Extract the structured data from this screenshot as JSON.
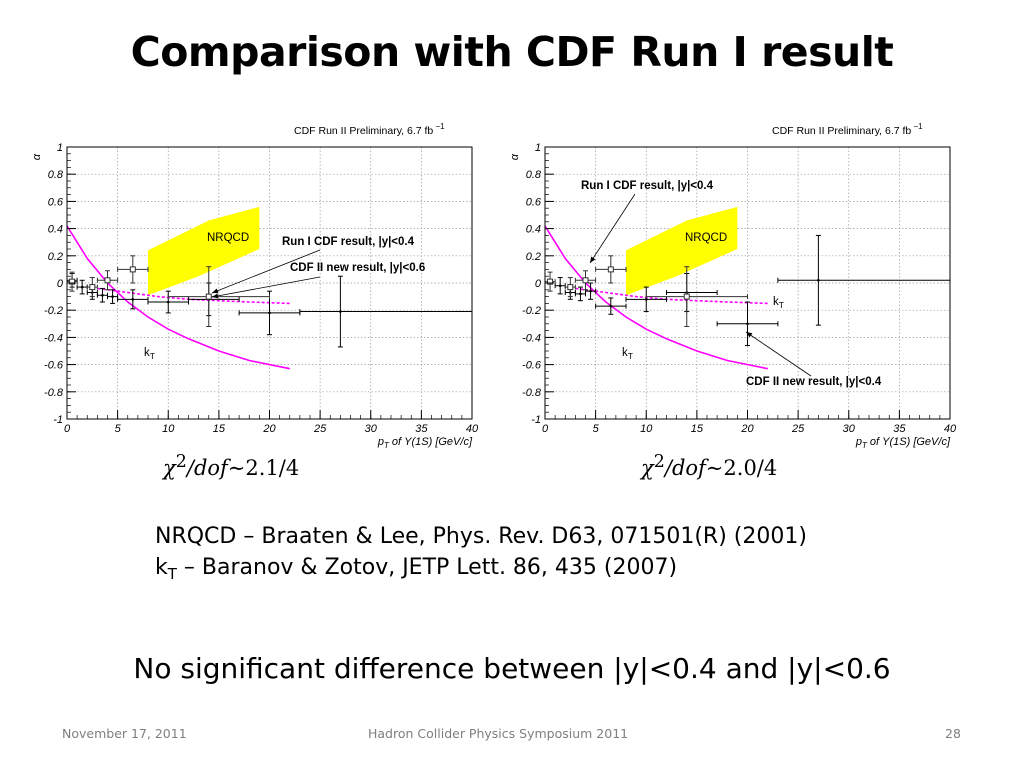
{
  "slide": {
    "title": "Comparison with CDF Run I result",
    "references": {
      "nrqcd": "NRQCD – Braaten & Lee, Phys. Rev. D63, 071501(R) (2001)",
      "kt_prefix": "k",
      "kt_sub": "T",
      "kt_rest": " – Baranov & Zotov, JETP Lett. 86, 435 (2007)"
    },
    "conclusion": "No significant difference between |y|<0.4 and |y|<0.6",
    "footer": {
      "date": "November 17, 2011",
      "event": "Hadron Collider Physics Symposium  2011",
      "page": "28"
    }
  },
  "chart_data": [
    {
      "type": "scatter",
      "header": "CDF Run II Preliminary,  6.7 fb",
      "header_sup": "−1",
      "ylabel": "α",
      "xlabel": "p",
      "xlabel_sub": "T",
      "xlabel_rest": " of Υ(1S) [GeV/c]",
      "xlim": [
        0,
        40
      ],
      "ylim": [
        -1,
        1
      ],
      "xticks": [
        0,
        5,
        10,
        15,
        20,
        25,
        30,
        35,
        40
      ],
      "yticks": [
        -1,
        -0.8,
        -0.6,
        -0.4,
        -0.2,
        0,
        0.2,
        0.4,
        0.6,
        0.8,
        1
      ],
      "grid": true,
      "chi2_text": "χ²/dof∼2.1/4",
      "chi2_prefix": "χ",
      "chi2_sup": "2",
      "chi2_mid": "/dof∼",
      "chi2_num": "2.1/4",
      "series": [
        {
          "name": "CDF II new result, |y|<0.6",
          "marker": "filled-point",
          "points": [
            {
              "x": 0.5,
              "xlo": 0,
              "xhi": 1,
              "y": 0.02,
              "yerr": 0.05
            },
            {
              "x": 1.5,
              "xlo": 1,
              "xhi": 2,
              "y": -0.03,
              "yerr": 0.05
            },
            {
              "x": 2.5,
              "xlo": 2,
              "xhi": 3,
              "y": -0.07,
              "yerr": 0.05
            },
            {
              "x": 3.5,
              "xlo": 3,
              "xhi": 4,
              "y": -0.09,
              "yerr": 0.05
            },
            {
              "x": 4.5,
              "xlo": 4,
              "xhi": 5,
              "y": -0.1,
              "yerr": 0.05
            },
            {
              "x": 6.5,
              "xlo": 5,
              "xhi": 8,
              "y": -0.12,
              "yerr": 0.07
            },
            {
              "x": 10,
              "xlo": 8,
              "xhi": 12,
              "y": -0.14,
              "yerr": 0.08
            },
            {
              "x": 14,
              "xlo": 12,
              "xhi": 17,
              "y": -0.12,
              "yerr": 0.12
            },
            {
              "x": 20,
              "xlo": 17,
              "xhi": 23,
              "y": -0.22,
              "yerr": 0.16
            },
            {
              "x": 27,
              "xlo": 23,
              "xhi": 40,
              "y": -0.21,
              "yerr": 0.26
            }
          ]
        },
        {
          "name": "Run I CDF result, |y|<0.4",
          "marker": "open-square",
          "points": [
            {
              "x": 0.5,
              "xlo": 0,
              "xhi": 1,
              "y": 0.01,
              "yerr": 0.07
            },
            {
              "x": 2.5,
              "xlo": 2,
              "xhi": 3,
              "y": -0.03,
              "yerr": 0.07
            },
            {
              "x": 4.0,
              "xlo": 3,
              "xhi": 5,
              "y": 0.02,
              "yerr": 0.07
            },
            {
              "x": 6.5,
              "xlo": 5,
              "xhi": 8,
              "y": 0.1,
              "yerr": 0.1
            },
            {
              "x": 14,
              "xlo": 10,
              "xhi": 20,
              "y": -0.1,
              "yerr": 0.22
            }
          ]
        }
      ],
      "bands": [
        {
          "name": "NRQCD",
          "color": "#ffff00",
          "upper": [
            [
              8,
              0.24
            ],
            [
              14,
              0.46
            ],
            [
              19,
              0.56
            ]
          ],
          "lower": [
            [
              8,
              -0.09
            ],
            [
              13,
              0.05
            ],
            [
              19,
              0.25
            ]
          ]
        }
      ],
      "curves": [
        {
          "name": "k",
          "name_sub": "T",
          "color": "#ff00ff",
          "style": "solid",
          "points": [
            [
              0,
              0.42
            ],
            [
              2,
              0.18
            ],
            [
              4,
              0.0
            ],
            [
              6,
              -0.14
            ],
            [
              8,
              -0.25
            ],
            [
              10,
              -0.34
            ],
            [
              12,
              -0.41
            ],
            [
              15,
              -0.5
            ],
            [
              18,
              -0.57
            ],
            [
              22,
              -0.63
            ]
          ]
        },
        {
          "name": "",
          "color": "#ff00ff",
          "style": "dashed",
          "points": [
            [
              3,
              -0.04
            ],
            [
              6,
              -0.07
            ],
            [
              9,
              -0.1
            ],
            [
              12,
              -0.12
            ],
            [
              15,
              -0.13
            ],
            [
              18,
              -0.14
            ],
            [
              22,
              -0.15
            ]
          ]
        }
      ],
      "annotations": {
        "nrqcd": "NRQCD",
        "run1": "Run I CDF result, |y|<0.4",
        "cdf2": "CDF II new result, |y|<0.6",
        "kt": "k",
        "kt_sub": "T"
      }
    },
    {
      "type": "scatter",
      "header": "CDF Run II Preliminary,  6.7 fb",
      "header_sup": "−1",
      "ylabel": "α",
      "xlabel": "p",
      "xlabel_sub": "T",
      "xlabel_rest": " of Υ(1S) [GeV/c]",
      "xlim": [
        0,
        40
      ],
      "ylim": [
        -1,
        1
      ],
      "xticks": [
        0,
        5,
        10,
        15,
        20,
        25,
        30,
        35,
        40
      ],
      "yticks": [
        -1,
        -0.8,
        -0.6,
        -0.4,
        -0.2,
        0,
        0.2,
        0.4,
        0.6,
        0.8,
        1
      ],
      "grid": true,
      "chi2_text": "χ²/dof∼2.0/4",
      "chi2_prefix": "χ",
      "chi2_sup": "2",
      "chi2_mid": "/dof∼",
      "chi2_num": "2.0/4",
      "series": [
        {
          "name": "CDF II new result, |y|<0.4",
          "marker": "filled-point",
          "points": [
            {
              "x": 1.5,
              "xlo": 1,
              "xhi": 2,
              "y": -0.02,
              "yerr": 0.06
            },
            {
              "x": 2.5,
              "xlo": 2,
              "xhi": 3,
              "y": -0.07,
              "yerr": 0.05
            },
            {
              "x": 3.5,
              "xlo": 3,
              "xhi": 4,
              "y": -0.08,
              "yerr": 0.05
            },
            {
              "x": 4.5,
              "xlo": 4,
              "xhi": 5,
              "y": -0.06,
              "yerr": 0.06
            },
            {
              "x": 6.5,
              "xlo": 5,
              "xhi": 8,
              "y": -0.17,
              "yerr": 0.06
            },
            {
              "x": 10,
              "xlo": 8,
              "xhi": 12,
              "y": -0.12,
              "yerr": 0.09
            },
            {
              "x": 14,
              "xlo": 12,
              "xhi": 17,
              "y": -0.07,
              "yerr": 0.14
            },
            {
              "x": 20,
              "xlo": 17,
              "xhi": 23,
              "y": -0.3,
              "yerr": 0.16
            },
            {
              "x": 27,
              "xlo": 23,
              "xhi": 40,
              "y": 0.02,
              "yerr": 0.33
            }
          ]
        },
        {
          "name": "Run I CDF result, |y|<0.4",
          "marker": "open-square",
          "points": [
            {
              "x": 0.5,
              "xlo": 0,
              "xhi": 1,
              "y": 0.01,
              "yerr": 0.07
            },
            {
              "x": 2.5,
              "xlo": 2,
              "xhi": 3,
              "y": -0.03,
              "yerr": 0.07
            },
            {
              "x": 4.0,
              "xlo": 3,
              "xhi": 5,
              "y": 0.02,
              "yerr": 0.07
            },
            {
              "x": 6.5,
              "xlo": 5,
              "xhi": 8,
              "y": 0.1,
              "yerr": 0.1
            },
            {
              "x": 14,
              "xlo": 10,
              "xhi": 20,
              "y": -0.1,
              "yerr": 0.22
            }
          ]
        }
      ],
      "bands": [
        {
          "name": "NRQCD",
          "color": "#ffff00",
          "upper": [
            [
              8,
              0.24
            ],
            [
              14,
              0.46
            ],
            [
              19,
              0.56
            ]
          ],
          "lower": [
            [
              8,
              -0.09
            ],
            [
              13,
              0.05
            ],
            [
              19,
              0.25
            ]
          ]
        }
      ],
      "curves": [
        {
          "name": "k",
          "name_sub": "T",
          "color": "#ff00ff",
          "style": "solid",
          "points": [
            [
              0,
              0.42
            ],
            [
              2,
              0.18
            ],
            [
              4,
              0.0
            ],
            [
              6,
              -0.14
            ],
            [
              8,
              -0.25
            ],
            [
              10,
              -0.34
            ],
            [
              12,
              -0.41
            ],
            [
              15,
              -0.5
            ],
            [
              18,
              -0.57
            ],
            [
              22,
              -0.63
            ]
          ]
        },
        {
          "name": "",
          "color": "#ff00ff",
          "style": "dashed",
          "points": [
            [
              3,
              -0.04
            ],
            [
              6,
              -0.07
            ],
            [
              9,
              -0.1
            ],
            [
              12,
              -0.12
            ],
            [
              15,
              -0.13
            ],
            [
              18,
              -0.14
            ],
            [
              22,
              -0.15
            ]
          ]
        }
      ],
      "annotations": {
        "nrqcd": "NRQCD",
        "run1": "Run I CDF result, |y|<0.4",
        "cdf2": "CDF II new result, |y|<0.4",
        "kt": "k",
        "kt_sub": "T"
      }
    }
  ]
}
